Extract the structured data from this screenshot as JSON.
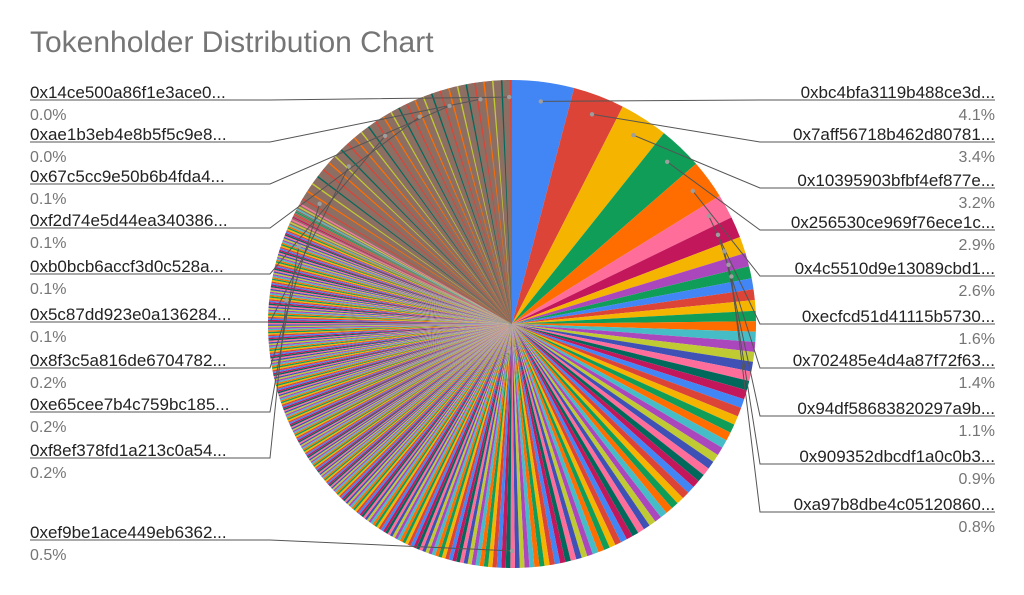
{
  "chart_data": {
    "type": "pie",
    "title": "Tokenholder Distribution Chart",
    "start_angle_deg": 0,
    "labeled_slices": [
      {
        "label": "0xbc4bfa3119b488ce3d...",
        "pct_text": "4.1%",
        "value": 4.1,
        "color": "#4285f4",
        "side": "right"
      },
      {
        "label": "0x7aff56718b462d80781...",
        "pct_text": "3.4%",
        "value": 3.4,
        "color": "#db4437",
        "side": "right"
      },
      {
        "label": "0x10395903bfbf4ef877e...",
        "pct_text": "3.2%",
        "value": 3.2,
        "color": "#f4b400",
        "side": "right"
      },
      {
        "label": "0x256530ce969f76ece1c...",
        "pct_text": "2.9%",
        "value": 2.9,
        "color": "#0f9d58",
        "side": "right"
      },
      {
        "label": "0x4c5510d9e13089cbd1...",
        "pct_text": "2.6%",
        "value": 2.6,
        "color": "#ff6d00",
        "side": "right"
      },
      {
        "label": "0xecfcd51d41115b5730...",
        "pct_text": "1.6%",
        "value": 1.6,
        "color": "#ff6d9a",
        "side": "right"
      },
      {
        "label": "0x702485e4d4a87f72f63...",
        "pct_text": "1.4%",
        "value": 1.4,
        "color": "#c2185b",
        "side": "right"
      },
      {
        "label": "0x94df58683820297a9b...",
        "pct_text": "1.1%",
        "value": 1.1,
        "color": "#f4b400",
        "side": "right"
      },
      {
        "label": "0x909352dbcdf1a0c0b3...",
        "pct_text": "0.9%",
        "value": 0.9,
        "color": "#ab47bc",
        "side": "right"
      },
      {
        "label": "0xa97b8dbe4c05120860...",
        "pct_text": "0.8%",
        "value": 0.8,
        "color": "#0f9d58",
        "side": "right"
      },
      {
        "label": "0xef9be1ace449eb6362...",
        "pct_text": "0.5%",
        "value": 0.5,
        "color": "#f4b400",
        "side": "left"
      },
      {
        "label": "0xf8ef378fd1a213c0a54...",
        "pct_text": "0.2%",
        "value": 0.2,
        "color": "#3f51b5",
        "side": "left"
      },
      {
        "label": "0xe65cee7b4c759bc185...",
        "pct_text": "0.2%",
        "value": 0.2,
        "color": "#0f9d58",
        "side": "left"
      },
      {
        "label": "0x8f3c5a816de6704782...",
        "pct_text": "0.2%",
        "value": 0.2,
        "color": "#4285f4",
        "side": "left"
      },
      {
        "label": "0x5c87dd923e0a136284...",
        "pct_text": "0.1%",
        "value": 0.1,
        "color": "#ab47bc",
        "side": "left"
      },
      {
        "label": "0xb0bcb6accf3d0c528a...",
        "pct_text": "0.1%",
        "value": 0.1,
        "color": "#46bdc6",
        "side": "left"
      },
      {
        "label": "0xf2d74e5d44ea340386...",
        "pct_text": "0.1%",
        "value": 0.1,
        "color": "#db4437",
        "side": "left"
      },
      {
        "label": "0x67c5cc9e50b6b4fda4...",
        "pct_text": "0.1%",
        "value": 0.1,
        "color": "#ff6d00",
        "side": "left"
      },
      {
        "label": "0xae1b3eb4e8b5f5c9e8...",
        "pct_text": "0.0%",
        "value": 0.0,
        "color": "#8d6e63",
        "side": "left"
      },
      {
        "label": "0x14ce500a86f1e3ace0...",
        "pct_text": "0.0%",
        "value": 0.0,
        "color": "#8d6e63",
        "side": "left"
      }
    ],
    "palette": [
      "#4285f4",
      "#db4437",
      "#f4b400",
      "#0f9d58",
      "#ff6d00",
      "#46bdc6",
      "#ab47bc",
      "#c0ca33",
      "#3f51b5",
      "#ff6d9a",
      "#00695c",
      "#c2185b"
    ],
    "tail_color": "#8d6e63"
  }
}
